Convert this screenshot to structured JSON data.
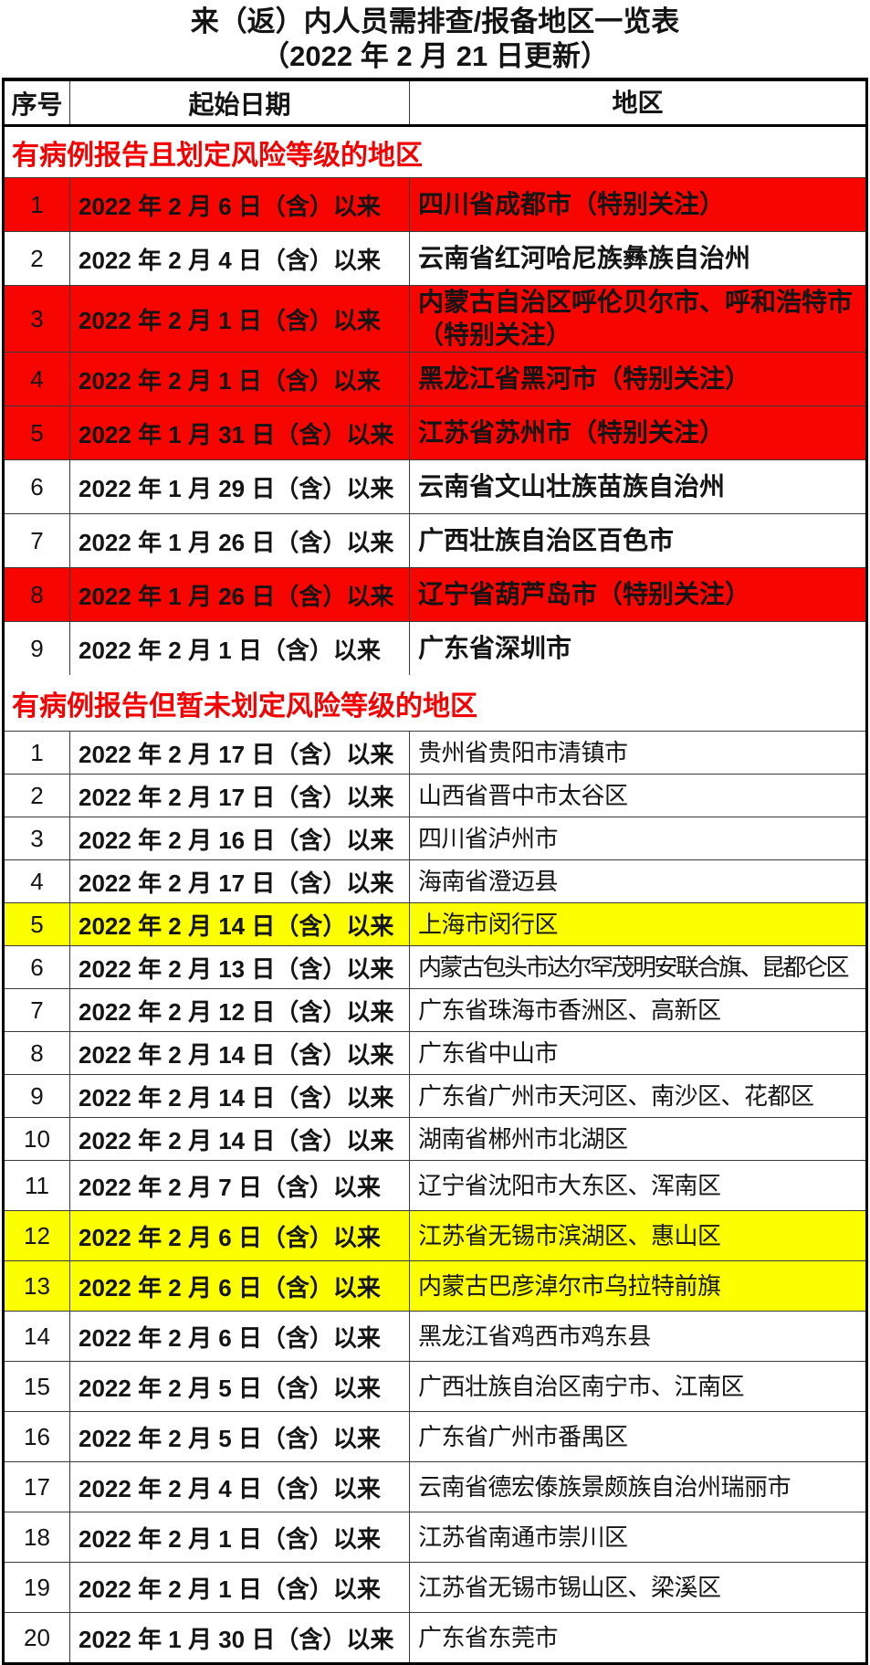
{
  "title": "来（返）内人员需排查/报备地区一览表",
  "subtitle": "（2022 年 2 月 21 日更新）",
  "colors": {
    "highlight_red": "#f70500",
    "highlight_yellow": "#fcff00",
    "section_header_text": "#f40000",
    "grid_line": "#3b3b3b"
  },
  "table": {
    "columns": [
      "序号",
      "起始日期",
      "地区"
    ],
    "sections": [
      {
        "header": "有病例报告且划定风险等级的地区",
        "rows": [
          {
            "no": "1",
            "date": "2022 年 2 月 6 日（含）以来",
            "region": "四川省成都市（特别关注）",
            "highlight": "red"
          },
          {
            "no": "2",
            "date": "2022 年 2 月 4 日（含）以来",
            "region": "云南省红河哈尼族彝族自治州",
            "highlight": "none"
          },
          {
            "no": "3",
            "date": "2022 年 2 月 1 日（含）以来",
            "region": "内蒙古自治区呼伦贝尔市、呼和浩特市（特别关注）",
            "highlight": "red"
          },
          {
            "no": "4",
            "date": "2022 年 2 月 1 日（含）以来",
            "region": "黑龙江省黑河市（特别关注）",
            "highlight": "red"
          },
          {
            "no": "5",
            "date": "2022 年 1 月 31 日（含）以来",
            "region": "江苏省苏州市（特别关注）",
            "highlight": "red"
          },
          {
            "no": "6",
            "date": "2022 年 1 月 29 日（含）以来",
            "region": "云南省文山壮族苗族自治州",
            "highlight": "none"
          },
          {
            "no": "7",
            "date": "2022 年 1 月 26 日（含）以来",
            "region": "广西壮族自治区百色市",
            "highlight": "none"
          },
          {
            "no": "8",
            "date": "2022 年 1 月 26 日（含）以来",
            "region": "辽宁省葫芦岛市（特别关注）",
            "highlight": "red"
          },
          {
            "no": "9",
            "date": "2022 年 2 月 1 日（含）以来",
            "region": "广东省深圳市",
            "highlight": "none"
          }
        ]
      },
      {
        "header": "有病例报告但暂未划定风险等级的地区",
        "rows": [
          {
            "no": "1",
            "date": "2022 年 2 月 17 日（含）以来",
            "region": "贵州省贵阳市清镇市",
            "highlight": "none"
          },
          {
            "no": "2",
            "date": "2022 年 2 月 17 日（含）以来",
            "region": "山西省晋中市太谷区",
            "highlight": "none"
          },
          {
            "no": "3",
            "date": "2022 年 2 月 16 日（含）以来",
            "region": "四川省泸州市",
            "highlight": "none"
          },
          {
            "no": "4",
            "date": "2022 年 2 月 17 日（含）以来",
            "region": "海南省澄迈县",
            "highlight": "none"
          },
          {
            "no": "5",
            "date": "2022 年 2 月 14 日（含）以来",
            "region": "上海市闵行区",
            "highlight": "yellow"
          },
          {
            "no": "6",
            "date": "2022 年 2 月 13 日（含）以来",
            "region": "内蒙古包头市达尔罕茂明安联合旗、昆都仑区",
            "highlight": "none"
          },
          {
            "no": "7",
            "date": "2022 年 2 月 12 日（含）以来",
            "region": "广东省珠海市香洲区、高新区",
            "highlight": "none"
          },
          {
            "no": "8",
            "date": "2022 年 2 月 14 日（含）以来",
            "region": "广东省中山市",
            "highlight": "none"
          },
          {
            "no": "9",
            "date": "2022 年 2 月 14 日（含）以来",
            "region": "广东省广州市天河区、南沙区、花都区",
            "highlight": "none"
          },
          {
            "no": "10",
            "date": "2022 年 2 月 14 日（含）以来",
            "region": "湖南省郴州市北湖区",
            "highlight": "none"
          },
          {
            "no": "11",
            "date": "2022 年 2 月 7 日（含）以来",
            "region": "辽宁省沈阳市大东区、浑南区",
            "highlight": "none"
          },
          {
            "no": "12",
            "date": "2022 年 2 月 6 日（含）以来",
            "region": "江苏省无锡市滨湖区、惠山区",
            "highlight": "yellow"
          },
          {
            "no": "13",
            "date": "2022 年 2 月 6 日（含）以来",
            "region": "内蒙古巴彦淖尔市乌拉特前旗",
            "highlight": "yellow"
          },
          {
            "no": "14",
            "date": "2022 年 2 月 6 日（含）以来",
            "region": "黑龙江省鸡西市鸡东县",
            "highlight": "none"
          },
          {
            "no": "15",
            "date": "2022 年 2 月 5 日（含）以来",
            "region": "广西壮族自治区南宁市、江南区",
            "highlight": "none"
          },
          {
            "no": "16",
            "date": "2022 年 2 月 5 日（含）以来",
            "region": "广东省广州市番禺区",
            "highlight": "none"
          },
          {
            "no": "17",
            "date": "2022 年 2 月 4 日（含）以来",
            "region": "云南省德宏傣族景颇族自治州瑞丽市",
            "highlight": "none"
          },
          {
            "no": "18",
            "date": "2022 年 2 月 1 日（含）以来",
            "region": "江苏省南通市崇川区",
            "highlight": "none"
          },
          {
            "no": "19",
            "date": "2022 年 2 月 1 日（含）以来",
            "region": "江苏省无锡市锡山区、梁溪区",
            "highlight": "none"
          },
          {
            "no": "20",
            "date": "2022 年 1 月 30 日（含）以来",
            "region": "广东省东莞市",
            "highlight": "none"
          }
        ]
      }
    ]
  }
}
